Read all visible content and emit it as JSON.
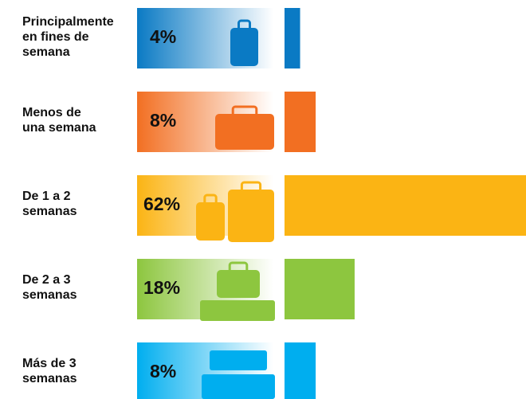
{
  "chart_data": {
    "type": "bar",
    "categories": [
      "Principalmente\nen fines de\nsemana",
      "Menos de\nuna semana",
      "De 1 a 2\nsemanas",
      "De 2 a 3\nsemanas",
      "Más de 3\nsemanas"
    ],
    "values": [
      4,
      8,
      62,
      18,
      8
    ],
    "value_labels": [
      "4%",
      "8%",
      "62%",
      "18%",
      "8%"
    ],
    "colors": [
      "#0a7ac4",
      "#f26f22",
      "#fbb414",
      "#8dc63f",
      "#00aeef"
    ]
  }
}
